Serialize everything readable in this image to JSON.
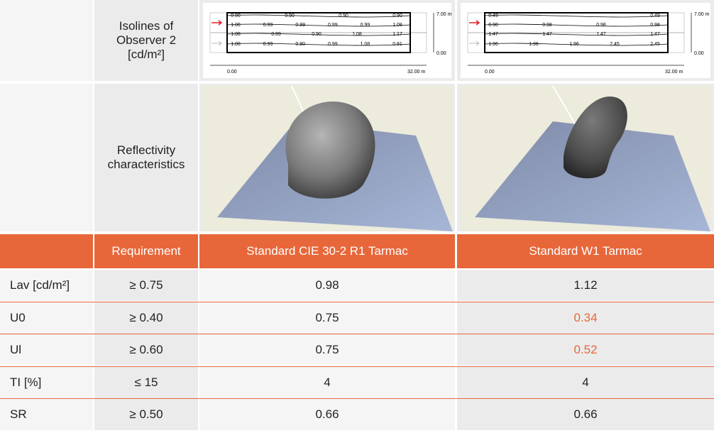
{
  "rows_top": {
    "isolines_label": "Isolines of Observer 2 [cd/m²]",
    "reflectivity_label": "Reflectivity characteristics"
  },
  "isolines": [
    {
      "labels_top": [
        "0.90",
        "0.90",
        "0.90",
        "0.90"
      ],
      "labels_mid": [
        "1.08",
        "0.99",
        "0.99",
        "0.99",
        "0.99",
        "1.08"
      ],
      "labels_low": [
        "1.08",
        "0.99",
        "0.90",
        "1.08",
        "1.17"
      ],
      "labels_bottom": [
        "1.08",
        "0.99",
        "0.90",
        "0.99",
        "1.08",
        "0.81"
      ],
      "height_top": "7.00 m",
      "height_bottom": "0.00",
      "x_start": "0.00",
      "x_end": "32.00 m"
    },
    {
      "labels_top": [
        "0.49",
        "0.49"
      ],
      "labels_mid": [
        "0.98",
        "0.98",
        "0.98",
        "0.98"
      ],
      "labels_low": [
        "1.47",
        "1.47",
        "1.47",
        "1.47"
      ],
      "labels_bottom": [
        "1.96",
        "1.96",
        "1.96",
        "2.45",
        "2.45"
      ],
      "height_top": "7.00 m",
      "height_bottom": "0.00",
      "x_start": "0.00",
      "x_end": "32.00 m"
    }
  ],
  "table": {
    "headers": [
      "",
      "Requirement",
      "Standard CIE 30-2 R1 Tarmac",
      "Standard W1 Tarmac"
    ],
    "rows": [
      {
        "label": "Lav [cd/m²]",
        "req": "≥ 0.75",
        "r1": "0.98",
        "w1": "1.12",
        "w1_fail": false
      },
      {
        "label": "U0",
        "req": "≥ 0.40",
        "r1": "0.75",
        "w1": "0.34",
        "w1_fail": true
      },
      {
        "label": "Ul",
        "req": "≥ 0.60",
        "r1": "0.75",
        "w1": "0.52",
        "w1_fail": true
      },
      {
        "label": "TI [%]",
        "req": "≤ 15",
        "r1": "4",
        "w1": "4",
        "w1_fail": false
      },
      {
        "label": "SR",
        "req": "≥ 0.50",
        "r1": "0.66",
        "w1": "0.66",
        "w1_fail": false
      }
    ]
  },
  "colors": {
    "accent": "#e8673a",
    "fail": "#e8673a"
  }
}
